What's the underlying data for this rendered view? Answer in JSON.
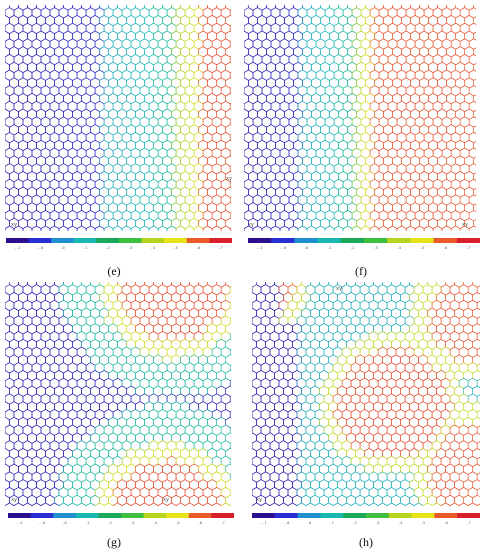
{
  "figure": {
    "panels": [
      {
        "id": "e",
        "caption": "(e)",
        "corner_marks": [
          "xy",
          "xy"
        ],
        "colorbar_ticks": [
          "-.1",
          "-.0",
          ".0",
          ".1",
          ".2",
          ".3",
          ".4",
          ".5",
          ".6",
          ".7"
        ],
        "pattern": "vertical-bands"
      },
      {
        "id": "f",
        "caption": "(f)",
        "corner_marks": [
          "xy",
          "xy"
        ],
        "colorbar_ticks": [
          "-.1",
          "-.0",
          ".0",
          ".1",
          ".2",
          ".3",
          ".4",
          ".5",
          ".6",
          ".7"
        ],
        "pattern": "vertical-bands-shifted"
      },
      {
        "id": "g",
        "caption": "(g)",
        "corner_marks": [
          "xy",
          "xy"
        ],
        "colorbar_ticks": [
          "-.1",
          "-.0",
          ".0",
          ".1",
          ".2",
          ".3",
          ".4",
          ".5",
          ".6",
          ".7"
        ],
        "pattern": "arcs"
      },
      {
        "id": "h",
        "caption": "(h)",
        "corner_marks": [
          "xy",
          "xy"
        ],
        "colorbar_ticks": [
          "-.1",
          "-.0",
          ".0",
          ".1",
          ".2",
          ".3",
          ".4",
          ".5",
          ".6",
          ".7"
        ],
        "pattern": "lobes"
      }
    ],
    "colormap": [
      "#2b0f8f",
      "#2a2fd4",
      "#1f8fcf",
      "#18b8b0",
      "#1aa85a",
      "#3fbf3f",
      "#b7d31e",
      "#e7e21a",
      "#e85a2a",
      "#d9202a"
    ]
  }
}
